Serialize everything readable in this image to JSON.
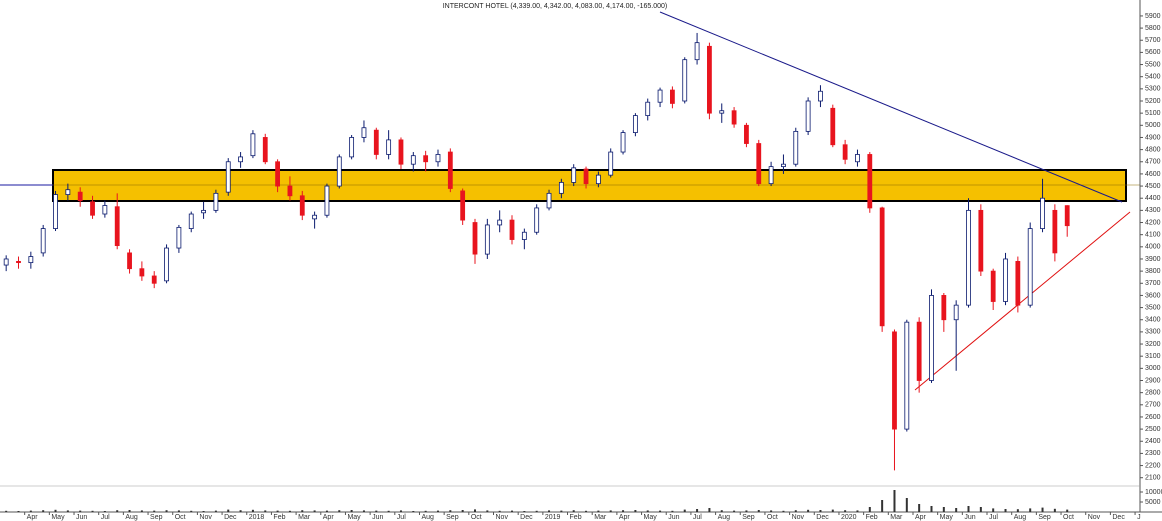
{
  "chart_data": {
    "type": "candlestick",
    "title": "INTERCONT HOTEL (4,339.00, 4,342.00, 4,083.00, 4,174.00, -165.000)",
    "x": [
      0.25,
      0.75,
      1.25,
      1.75,
      2.25,
      2.75,
      3.25,
      3.75,
      4.25,
      4.75,
      5.25,
      5.75,
      6.25,
      6.75,
      7.25,
      7.75,
      8.25,
      8.75,
      9.25,
      9.75,
      10.25,
      10.75,
      11.25,
      11.75,
      12.25,
      12.75,
      13.25,
      13.75,
      14.25,
      14.75,
      15.25,
      15.75,
      16.25,
      16.75,
      17.25,
      17.75,
      18.25,
      18.75,
      19.25,
      19.75,
      20.25,
      20.75,
      21.25,
      21.75,
      22.25,
      22.75,
      23.25,
      23.75,
      24.25,
      24.75,
      25.25,
      25.75,
      26.25,
      26.75,
      27.25,
      27.75,
      28.25,
      28.75,
      29.25,
      29.75,
      30.25,
      30.75,
      31.25,
      31.75,
      32.25,
      32.75,
      33.25,
      33.75,
      34.25,
      34.75,
      35.25,
      35.75,
      36.25,
      36.75,
      37.25,
      37.75,
      38.25,
      38.75,
      39.25,
      39.75,
      40.25,
      40.75,
      41.25,
      41.75,
      42.25,
      42.75,
      43.25
    ],
    "open": [
      3850,
      3880,
      3870,
      3950,
      4150,
      4430,
      4450,
      4370,
      4270,
      4330,
      3950,
      3820,
      3760,
      3720,
      3990,
      4150,
      4280,
      4300,
      4450,
      4700,
      4750,
      4900,
      4700,
      4500,
      4420,
      4230,
      4260,
      4500,
      4740,
      4900,
      4960,
      4760,
      4880,
      4680,
      4750,
      4700,
      4780,
      4460,
      4200,
      3940,
      4180,
      4220,
      4060,
      4120,
      4320,
      4440,
      4530,
      4640,
      4520,
      4590,
      4780,
      4940,
      5080,
      5190,
      5290,
      5200,
      5540,
      5650,
      5100,
      5120,
      5000,
      4850,
      4520,
      4660,
      4680,
      4950,
      5200,
      5140,
      4840,
      4700,
      4760,
      4320,
      3300,
      2500,
      3380,
      2900,
      3600,
      3400,
      3520,
      4300,
      3800,
      3550,
      3880,
      3520,
      4150,
      4300,
      4339
    ],
    "high": [
      3930,
      3920,
      3960,
      4180,
      4460,
      4520,
      4490,
      4420,
      4380,
      4440,
      3980,
      3880,
      3800,
      4020,
      4180,
      4290,
      4370,
      4470,
      4730,
      4780,
      4960,
      4930,
      4720,
      4580,
      4460,
      4290,
      4520,
      4760,
      4920,
      5040,
      4980,
      4960,
      4900,
      4780,
      4790,
      4800,
      4810,
      4480,
      4230,
      4230,
      4300,
      4260,
      4150,
      4350,
      4470,
      4560,
      4680,
      4660,
      4620,
      4810,
      4960,
      5100,
      5220,
      5310,
      5320,
      5560,
      5760,
      5680,
      5180,
      5150,
      5020,
      4880,
      4700,
      4760,
      4980,
      5230,
      5330,
      5170,
      4880,
      4800,
      4780,
      4330,
      3320,
      3400,
      3420,
      3650,
      3620,
      3560,
      4400,
      4350,
      3820,
      3950,
      3920,
      4200,
      4560,
      4350,
      4342
    ],
    "low": [
      3800,
      3820,
      3820,
      3920,
      4130,
      4380,
      4330,
      4230,
      4240,
      3980,
      3780,
      3720,
      3660,
      3700,
      3950,
      4120,
      4230,
      4280,
      4420,
      4650,
      4730,
      4680,
      4450,
      4380,
      4220,
      4150,
      4240,
      4480,
      4720,
      4860,
      4720,
      4720,
      4640,
      4620,
      4620,
      4660,
      4450,
      4180,
      3860,
      3900,
      4120,
      4020,
      3980,
      4100,
      4300,
      4400,
      4500,
      4480,
      4490,
      4570,
      4760,
      4910,
      5040,
      5150,
      5140,
      5180,
      5500,
      5050,
      5020,
      4980,
      4820,
      4500,
      4500,
      4600,
      4660,
      4920,
      5150,
      4820,
      4680,
      4660,
      4280,
      3300,
      2160,
      2480,
      2800,
      2880,
      3300,
      2980,
      3500,
      3760,
      3480,
      3520,
      3460,
      3500,
      4120,
      3880,
      4083
    ],
    "close": [
      3900,
      3870,
      3920,
      4150,
      4430,
      4470,
      4380,
      4260,
      4340,
      4010,
      3820,
      3760,
      3700,
      3990,
      4160,
      4270,
      4300,
      4440,
      4700,
      4740,
      4930,
      4700,
      4500,
      4420,
      4260,
      4260,
      4500,
      4740,
      4900,
      4980,
      4760,
      4880,
      4680,
      4750,
      4700,
      4760,
      4480,
      4220,
      3940,
      4180,
      4220,
      4060,
      4120,
      4320,
      4440,
      4530,
      4650,
      4520,
      4590,
      4780,
      4940,
      5080,
      5190,
      5290,
      5180,
      5540,
      5680,
      5100,
      5120,
      5010,
      4850,
      4520,
      4660,
      4680,
      4950,
      5200,
      5280,
      4840,
      4720,
      4760,
      4320,
      3350,
      2500,
      3380,
      2900,
      3600,
      3400,
      3520,
      4300,
      3800,
      3550,
      3900,
      3520,
      4150,
      4400,
      3950,
      4174
    ],
    "volume": [
      600,
      500,
      700,
      900,
      1100,
      800,
      700,
      600,
      500,
      900,
      1000,
      800,
      700,
      900,
      800,
      600,
      500,
      700,
      1200,
      900,
      1100,
      800,
      700,
      600,
      900,
      800,
      700,
      900,
      1000,
      800,
      700,
      600,
      800,
      500,
      600,
      700,
      900,
      1000,
      1300,
      800,
      600,
      700,
      500,
      600,
      800,
      700,
      900,
      600,
      700,
      800,
      900,
      1000,
      800,
      700,
      600,
      1200,
      1500,
      2000,
      900,
      700,
      800,
      1000,
      800,
      600,
      900,
      1100,
      1000,
      1200,
      900,
      800,
      2500,
      6000,
      11000,
      7000,
      4000,
      3000,
      2500,
      2000,
      3000,
      2500,
      1800,
      1500,
      1400,
      1800,
      2200,
      1600,
      1200
    ],
    "up_color": "#ffffff",
    "up_edge": "#0a1a6e",
    "down_color": "#e8141e",
    "xlim": [
      0,
      46.2
    ],
    "xticks": [
      {
        "value": 1,
        "label": "Apr"
      },
      {
        "value": 2,
        "label": "May"
      },
      {
        "value": 3,
        "label": "Jun"
      },
      {
        "value": 4,
        "label": "Jul"
      },
      {
        "value": 5,
        "label": "Aug"
      },
      {
        "value": 6,
        "label": "Sep"
      },
      {
        "value": 7,
        "label": "Oct"
      },
      {
        "value": 8,
        "label": "Nov"
      },
      {
        "value": 9,
        "label": "Dec"
      },
      {
        "value": 10,
        "label": "2018"
      },
      {
        "value": 11,
        "label": "Feb"
      },
      {
        "value": 12,
        "label": "Mar"
      },
      {
        "value": 13,
        "label": "Apr"
      },
      {
        "value": 14,
        "label": "May"
      },
      {
        "value": 15,
        "label": "Jun"
      },
      {
        "value": 16,
        "label": "Jul"
      },
      {
        "value": 17,
        "label": "Aug"
      },
      {
        "value": 18,
        "label": "Sep"
      },
      {
        "value": 19,
        "label": "Oct"
      },
      {
        "value": 20,
        "label": "Nov"
      },
      {
        "value": 21,
        "label": "Dec"
      },
      {
        "value": 22,
        "label": "2019"
      },
      {
        "value": 23,
        "label": "Feb"
      },
      {
        "value": 24,
        "label": "Mar"
      },
      {
        "value": 25,
        "label": "Apr"
      },
      {
        "value": 26,
        "label": "May"
      },
      {
        "value": 27,
        "label": "Jun"
      },
      {
        "value": 28,
        "label": "Jul"
      },
      {
        "value": 29,
        "label": "Aug"
      },
      {
        "value": 30,
        "label": "Sep"
      },
      {
        "value": 31,
        "label": "Oct"
      },
      {
        "value": 32,
        "label": "Nov"
      },
      {
        "value": 33,
        "label": "Dec"
      },
      {
        "value": 34,
        "label": "2020"
      },
      {
        "value": 35,
        "label": "Feb"
      },
      {
        "value": 36,
        "label": "Mar"
      },
      {
        "value": 37,
        "label": "Apr"
      },
      {
        "value": 38,
        "label": "May"
      },
      {
        "value": 39,
        "label": "Jun"
      },
      {
        "value": 40,
        "label": "Jul"
      },
      {
        "value": 41,
        "label": "Aug"
      },
      {
        "value": 42,
        "label": "Sep"
      },
      {
        "value": 43,
        "label": "Oct"
      },
      {
        "value": 44,
        "label": "Nov"
      },
      {
        "value": 45,
        "label": "Dec"
      },
      {
        "value": 46,
        "label": "J"
      }
    ],
    "ylim": [
      2040,
      5990
    ],
    "yticks": [
      2100,
      2200,
      2300,
      2400,
      2500,
      2600,
      2700,
      2800,
      2900,
      3000,
      3100,
      3200,
      3300,
      3400,
      3500,
      3600,
      3700,
      3800,
      3900,
      4000,
      4100,
      4200,
      4300,
      4400,
      4500,
      4600,
      4700,
      4800,
      4900,
      5000,
      5100,
      5200,
      5300,
      5400,
      5500,
      5600,
      5700,
      5800,
      5900
    ],
    "y2lim": [
      0,
      11000
    ],
    "y2ticks": [
      5000,
      10000
    ]
  }
}
